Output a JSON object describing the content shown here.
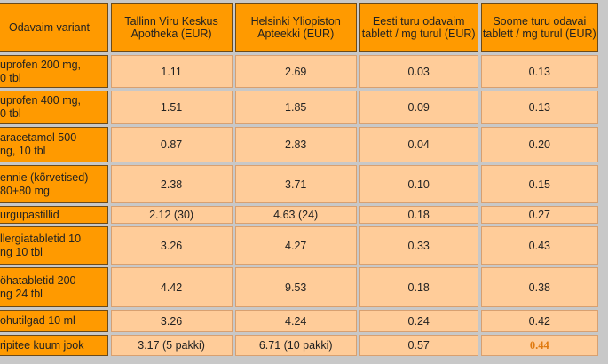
{
  "table": {
    "headers": [
      "Odavaim variant",
      "Tallinn Viru Keskus Apotheka (EUR)",
      "Helsinki Yliopiston Apteekki (EUR)",
      "Eesti turu odavaim tablett / mg turul (EUR)",
      "Soome turu odavai tablett / mg turul (EUR)"
    ],
    "rows": [
      {
        "label_line1": "uprofen 200 mg,",
        "label_line2": "0 tbl",
        "tallinn": "1.11",
        "helsinki": "2.69",
        "eesti": "0.03",
        "soome": "0.13"
      },
      {
        "label_line1": "uprofen 400 mg,",
        "label_line2": "0 tbl",
        "tallinn": "1.51",
        "helsinki": "1.85",
        "eesti": "0.09",
        "soome": "0.13"
      },
      {
        "label_line1": "aracetamol 500",
        "label_line2": "ng, 10 tbl",
        "tallinn": "0.87",
        "helsinki": "2.83",
        "eesti": "0.04",
        "soome": "0.20"
      },
      {
        "label_line1": "ennie (kõrvetised)",
        "label_line2": "80+80 mg",
        "tallinn": "2.38",
        "helsinki": "3.71",
        "eesti": "0.10",
        "soome": "0.15"
      },
      {
        "label_line1": "urgupastillid",
        "label_line2": "",
        "tallinn": "2.12 (30)",
        "helsinki": "4.63 (24)",
        "eesti": "0.18",
        "soome": "0.27"
      },
      {
        "label_line1": "llergiatabletid 10",
        "label_line2": "ng 10 tbl",
        "tallinn": "3.26",
        "helsinki": "4.27",
        "eesti": "0.33",
        "soome": "0.43"
      },
      {
        "label_line1": "öhatabletid 200",
        "label_line2": "ng 24 tbl",
        "tallinn": "4.42",
        "helsinki": "9.53",
        "eesti": "0.18",
        "soome": "0.38"
      },
      {
        "label_line1": "ohutilgad 10 ml",
        "label_line2": "",
        "tallinn": "3.26",
        "helsinki": "4.24",
        "eesti": "0.24",
        "soome": "0.42"
      },
      {
        "label_line1": "ripitee kuum jook",
        "label_line2": "",
        "tallinn": "3.17 (5 pakki)",
        "helsinki": "6.71 (10 pakki)",
        "eesti": "0.57",
        "soome": "0.44"
      }
    ],
    "emphasis_color": "#e07a10"
  }
}
